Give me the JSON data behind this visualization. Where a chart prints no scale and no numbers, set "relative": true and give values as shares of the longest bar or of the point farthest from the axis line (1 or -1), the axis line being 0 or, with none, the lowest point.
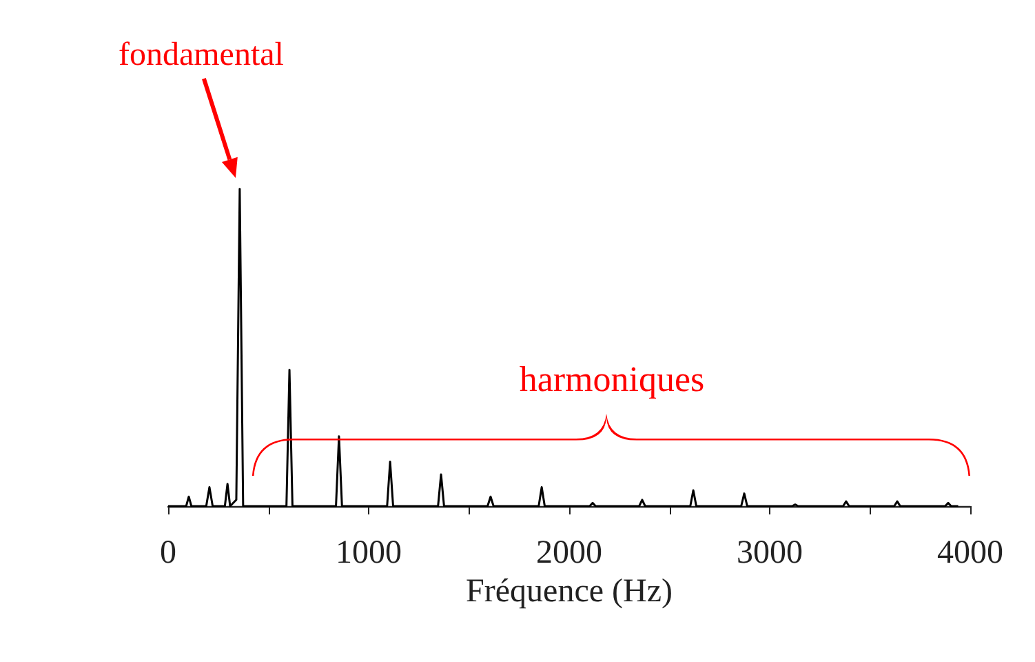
{
  "chart_data": {
    "type": "line",
    "relative": true,
    "xlabel": "Fréquence (Hz)",
    "xlim": [
      0,
      4000
    ],
    "xticks": [
      0,
      {
        "value": 500,
        "label": null
      },
      1000,
      {
        "value": 1500,
        "label": null
      },
      2000,
      {
        "value": 2500,
        "label": null
      },
      3000,
      {
        "value": 3500,
        "label": null
      },
      4000
    ],
    "grid": false,
    "marker": "none",
    "line_style": "solid",
    "annotations": [
      "fondamental",
      "harmoniques"
    ],
    "series": [
      {
        "color": "#000000",
        "x": [
          0,
          90,
          103,
          116,
          190,
          206,
          222,
          283,
          296,
          309,
          340,
          357,
          374,
          590,
          605,
          620,
          837,
          852,
          867,
          1092,
          1107,
          1122,
          1346,
          1361,
          1376,
          1593,
          1608,
          1623,
          1848,
          1863,
          1878,
          2102,
          2117,
          2132,
          2349,
          2364,
          2379,
          2604,
          2619,
          2634,
          2858,
          2873,
          2888,
          3112,
          3127,
          3142,
          3366,
          3381,
          3396,
          3621,
          3636,
          3651,
          3875,
          3890,
          3905,
          3940
        ],
        "values": [
          0,
          0,
          0.03,
          0,
          0,
          0.06,
          0,
          0,
          0.07,
          0,
          0.02,
          1,
          0,
          0,
          0.43,
          0,
          0,
          0.22,
          0,
          0,
          0.14,
          0,
          0,
          0.1,
          0,
          0,
          0.03,
          0,
          0,
          0.06,
          0,
          0,
          0.01,
          0,
          0,
          0.02,
          0,
          0,
          0.05,
          0,
          0,
          0.04,
          0,
          0,
          0.005,
          0,
          0,
          0.015,
          0,
          0,
          0.015,
          0,
          0,
          0.01,
          0,
          0
        ]
      }
    ]
  }
}
